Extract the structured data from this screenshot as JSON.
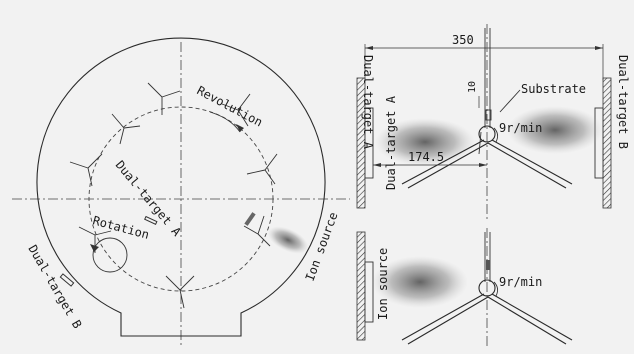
{
  "labels": {
    "revolution": "Revolution",
    "rotation": "Rotation",
    "dual_target_a": "Dual-target A",
    "dual_target_b": "Dual-target B",
    "ion_source": "Ion source",
    "substrate": "Substrate",
    "speed": "9r/min",
    "dim_350": "350",
    "dim_174_5": "174.5",
    "dim_10": "10"
  }
}
